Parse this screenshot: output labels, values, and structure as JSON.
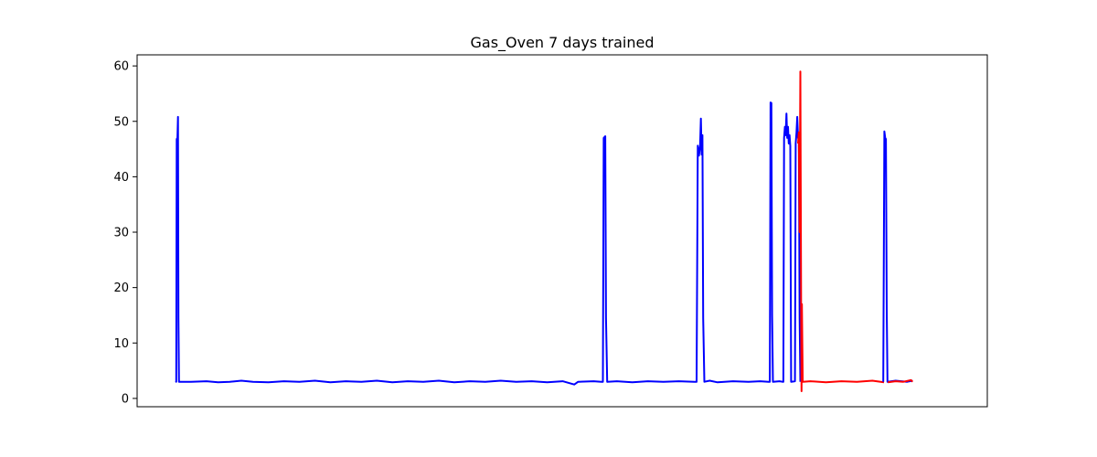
{
  "chart_data": {
    "type": "line",
    "title": "Gas_Oven 7 days trained",
    "xlabel": "",
    "ylabel": "",
    "x_ticks_visible": false,
    "x_range": [
      0,
      100
    ],
    "ylim": [
      -1.5,
      62
    ],
    "yticks": [
      0,
      10,
      20,
      30,
      40,
      50,
      60
    ],
    "grid": false,
    "legend": "none",
    "series": [
      {
        "color": "#0000ff",
        "points": [
          [
            0,
            3.1
          ],
          [
            0.1,
            3.0
          ],
          [
            0.15,
            46.8
          ],
          [
            0.25,
            47.0
          ],
          [
            0.32,
            50.8
          ],
          [
            0.38,
            14.5
          ],
          [
            0.45,
            3.0
          ],
          [
            2,
            3.0
          ],
          [
            4,
            3.1
          ],
          [
            5.5,
            2.9
          ],
          [
            7,
            3.0
          ],
          [
            8.5,
            3.2
          ],
          [
            10,
            3.0
          ],
          [
            12,
            2.9
          ],
          [
            14,
            3.1
          ],
          [
            16,
            3.0
          ],
          [
            18,
            3.2
          ],
          [
            20,
            2.9
          ],
          [
            22,
            3.1
          ],
          [
            24,
            3.0
          ],
          [
            26,
            3.2
          ],
          [
            28,
            2.9
          ],
          [
            30,
            3.1
          ],
          [
            32,
            3.0
          ],
          [
            34,
            3.2
          ],
          [
            36,
            2.9
          ],
          [
            38,
            3.1
          ],
          [
            40,
            3.0
          ],
          [
            42,
            3.2
          ],
          [
            44,
            3.0
          ],
          [
            46,
            3.1
          ],
          [
            48,
            2.9
          ],
          [
            50,
            3.1
          ],
          [
            51.5,
            2.5
          ],
          [
            52,
            3.0
          ],
          [
            54,
            3.1
          ],
          [
            55,
            3.0
          ],
          [
            55.2,
            3.0
          ],
          [
            55.3,
            47.0
          ],
          [
            55.5,
            47.3
          ],
          [
            55.6,
            14.5
          ],
          [
            55.75,
            3.0
          ],
          [
            57,
            3.1
          ],
          [
            59,
            2.9
          ],
          [
            61,
            3.1
          ],
          [
            63,
            3.0
          ],
          [
            65,
            3.1
          ],
          [
            67,
            3.0
          ],
          [
            67.3,
            3.0
          ],
          [
            67.45,
            45.6
          ],
          [
            67.6,
            43.8
          ],
          [
            67.75,
            45.5
          ],
          [
            67.85,
            50.5
          ],
          [
            67.95,
            44.0
          ],
          [
            68.05,
            47.5
          ],
          [
            68.15,
            14.5
          ],
          [
            68.3,
            3.0
          ],
          [
            69,
            3.2
          ],
          [
            70,
            2.9
          ],
          [
            72,
            3.1
          ],
          [
            74,
            3.0
          ],
          [
            75.5,
            3.1
          ],
          [
            76.6,
            3.0
          ],
          [
            76.75,
            3.0
          ],
          [
            76.85,
            53.4
          ],
          [
            76.95,
            53.3
          ],
          [
            77.05,
            15.0
          ],
          [
            77.15,
            3.0
          ],
          [
            78,
            3.1
          ],
          [
            78.4,
            3.0
          ],
          [
            78.5,
            3.0
          ],
          [
            78.6,
            47.0
          ],
          [
            78.7,
            49.0
          ],
          [
            78.8,
            47.5
          ],
          [
            78.9,
            51.4
          ],
          [
            79.0,
            47.0
          ],
          [
            79.1,
            49.0
          ],
          [
            79.2,
            46.0
          ],
          [
            79.3,
            47.5
          ],
          [
            79.4,
            45.5
          ],
          [
            79.5,
            3.0
          ],
          [
            80.0,
            3.1
          ],
          [
            80.1,
            46.0
          ],
          [
            80.2,
            48.0
          ],
          [
            80.3,
            50.8
          ],
          [
            80.4,
            47.0
          ],
          [
            80.5,
            48.0
          ],
          [
            80.6,
            14.5
          ],
          [
            80.7,
            3.0
          ]
        ]
      },
      {
        "color": "#ff0000",
        "points": [
          [
            80.4,
            46.0
          ],
          [
            80.5,
            48.0
          ],
          [
            80.6,
            30.0
          ],
          [
            80.7,
            59.0
          ],
          [
            80.8,
            14.0
          ],
          [
            80.85,
            1.3
          ],
          [
            80.9,
            17.0
          ],
          [
            81.0,
            3.0
          ],
          [
            82,
            3.1
          ],
          [
            84,
            2.9
          ],
          [
            86,
            3.1
          ],
          [
            88,
            3.0
          ],
          [
            90,
            3.2
          ],
          [
            91.5,
            2.9
          ]
        ]
      },
      {
        "color": "#0000ff",
        "points": [
          [
            91.4,
            3.0
          ],
          [
            91.55,
            48.2
          ],
          [
            91.65,
            47.0
          ],
          [
            91.75,
            46.8
          ],
          [
            91.85,
            16.0
          ],
          [
            91.95,
            3.0
          ],
          [
            93,
            3.2
          ],
          [
            94.5,
            3.0
          ],
          [
            95.2,
            3.2
          ]
        ]
      },
      {
        "color": "#ff0000",
        "points": [
          [
            92,
            2.9
          ],
          [
            93,
            3.1
          ],
          [
            94,
            3.0
          ],
          [
            95,
            3.3
          ],
          [
            95.2,
            3.0
          ]
        ]
      }
    ]
  }
}
